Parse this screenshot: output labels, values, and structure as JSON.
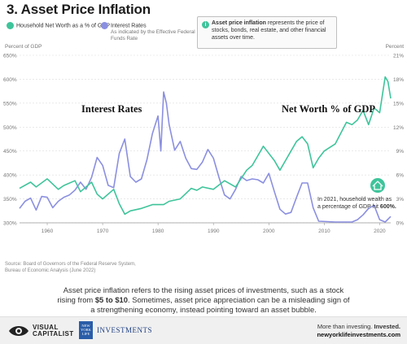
{
  "title": "3. Asset Price Inflation",
  "legend": {
    "items": [
      {
        "label": "Household Net Worth as a % of GDP",
        "sub": "",
        "color": "#3ec49a"
      },
      {
        "label": "Interest Rates",
        "sub": "As indicated by the Effective Federal Funds Rate",
        "color": "#8b8fe0"
      }
    ]
  },
  "info_box": {
    "icon": "info-icon",
    "bold": "Asset price inflation",
    "text": " represents the price of stocks, bonds, real estate, and other financial assets over time."
  },
  "axis_units": {
    "left": "Percent of GDP",
    "right": "Percent"
  },
  "source": "Source: Board of Governors of the Federal Reserve System, Bureau of Economic Analysis (June 2022)",
  "description": {
    "part1": "Asset price inflation refers to the rising asset prices of investments, such as a stock rising from ",
    "bold": "$5 to $10",
    "part2": ". Sometimes, asset price appreciation can be a misleading sign of a strengthening economy, instead pointing toward an asset bubble."
  },
  "footer": {
    "vc_name_1": "VISUAL",
    "vc_name_2": "CAPITALIST",
    "nyl_badge": "NEW YORK LIFE",
    "nyl_text": "INVESTMENTS",
    "tagline_1": "More than investing. ",
    "tagline_strong": "Invested.",
    "url": "newyorklifeinvestments.com"
  },
  "chart_data": {
    "type": "line",
    "xlim": [
      1955,
      2022
    ],
    "x_ticks": [
      "1960",
      "1970",
      "1980",
      "1990",
      "2000",
      "2010",
      "2020"
    ],
    "y_left": {
      "label": "Percent of GDP",
      "lim": [
        300,
        650
      ],
      "ticks": [
        "300%",
        "350%",
        "400%",
        "450%",
        "500%",
        "550%",
        "600%",
        "650%"
      ]
    },
    "y_right": {
      "label": "Percent",
      "lim": [
        0,
        21
      ],
      "ticks": [
        "0%",
        "3%",
        "6%",
        "9%",
        "12%",
        "15%",
        "18%",
        "21%"
      ]
    },
    "annotations": {
      "interest_rates": "Interest Rates",
      "net_worth": "Net Worth % of GDP",
      "callout_1": "In 2021, household wealth as",
      "callout_2a": "a percentage of GDP hit ",
      "callout_2b": "600%."
    },
    "series": [
      {
        "name": "Household Net Worth as a % of GDP",
        "axis": "left",
        "color": "#3ec49a",
        "x": [
          1955,
          1957,
          1958,
          1960,
          1962,
          1963,
          1965,
          1966,
          1968,
          1969,
          1970,
          1972,
          1973,
          1974,
          1975,
          1977,
          1979,
          1981,
          1982,
          1984,
          1986,
          1987,
          1988,
          1990,
          1992,
          1994,
          1996,
          1997,
          1998,
          1999,
          2000,
          2001,
          2002,
          2003,
          2004,
          2005,
          2006,
          2007,
          2008,
          2009,
          2010,
          2012,
          2014,
          2015,
          2016,
          2017,
          2018,
          2019,
          2020,
          2021,
          2021.5,
          2022
        ],
        "values": [
          372,
          385,
          375,
          392,
          370,
          378,
          388,
          365,
          385,
          360,
          350,
          370,
          340,
          318,
          325,
          330,
          338,
          338,
          345,
          350,
          372,
          368,
          375,
          370,
          388,
          375,
          410,
          420,
          440,
          460,
          445,
          430,
          410,
          430,
          450,
          470,
          480,
          465,
          415,
          435,
          450,
          465,
          510,
          505,
          515,
          535,
          505,
          540,
          530,
          605,
          595,
          560
        ]
      },
      {
        "name": "Interest Rates",
        "axis": "right",
        "color": "#8b8fe0",
        "x": [
          1955,
          1956,
          1957,
          1958,
          1959,
          1960,
          1961,
          1962,
          1963,
          1964,
          1965,
          1966,
          1967,
          1968,
          1969,
          1970,
          1971,
          1972,
          1973,
          1974,
          1975,
          1976,
          1977,
          1978,
          1979,
          1980,
          1980.5,
          1981,
          1981.5,
          1982,
          1983,
          1984,
          1985,
          1986,
          1987,
          1988,
          1989,
          1990,
          1991,
          1992,
          1993,
          1994,
          1995,
          1996,
          1997,
          1998,
          1999,
          2000,
          2001,
          2002,
          2003,
          2004,
          2005,
          2006,
          2007,
          2008,
          2009,
          2012,
          2015,
          2016,
          2017,
          2018,
          2019,
          2020,
          2021,
          2022
        ],
        "values": [
          1.8,
          2.7,
          3.1,
          1.6,
          3.3,
          3.2,
          1.9,
          2.7,
          3.2,
          3.5,
          4.1,
          5.1,
          4.2,
          5.7,
          8.2,
          7.2,
          4.7,
          4.4,
          8.7,
          10.5,
          5.8,
          5.1,
          5.5,
          7.9,
          11.2,
          13.4,
          9.0,
          16.4,
          15.0,
          12.3,
          9.1,
          10.2,
          8.1,
          6.8,
          6.7,
          7.6,
          9.2,
          8.1,
          5.7,
          3.5,
          3.0,
          4.2,
          5.8,
          5.3,
          5.5,
          5.4,
          5.0,
          6.2,
          3.9,
          1.7,
          1.1,
          1.3,
          3.2,
          5.0,
          5.0,
          1.9,
          0.2,
          0.1,
          0.1,
          0.4,
          1.0,
          1.8,
          2.2,
          0.4,
          0.1,
          0.8
        ]
      }
    ]
  }
}
